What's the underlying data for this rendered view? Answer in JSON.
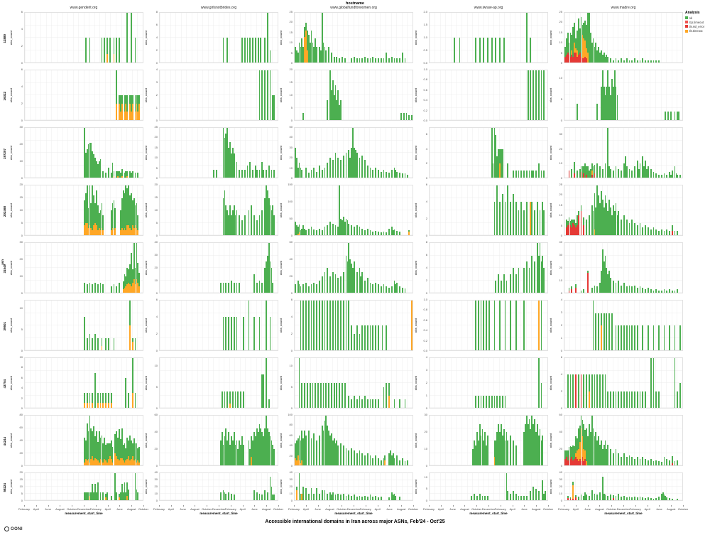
{
  "header": {
    "facet_title": "hostname",
    "columns": [
      "www.genderit.org",
      "www.girlsnotbrides.org",
      "www.globalfundforwomen.org",
      "www.iwraw-ap.org",
      "www.madre.org"
    ]
  },
  "left": {
    "facet_title": "asn",
    "rows": [
      "12880",
      "16322",
      "197207",
      "202468",
      "31549",
      "39501",
      "43754",
      "44244",
      "58224"
    ]
  },
  "legend": {
    "title": "Analysis",
    "items": [
      {
        "label": "ok",
        "color": "#4CAF50"
      },
      {
        "label": "tcp.timeout",
        "color": "#EF5350"
      },
      {
        "label": "tls.ssl_error",
        "color": "#E53935"
      },
      {
        "label": "tls.timeout",
        "color": "#FFA726"
      }
    ]
  },
  "axes": {
    "x_label": "measurement_start_time",
    "y_label": "obs_count",
    "x_ticks": [
      "February",
      "April",
      "June",
      "August",
      "October",
      "December",
      "February",
      "April",
      "June",
      "August",
      "October"
    ]
  },
  "footer": {
    "title": "Accessible international domains in Iran across major ASNs, Feb'24 - Oct'25",
    "logo_text": "OONI"
  },
  "chart_data": {
    "type": "bar",
    "stacked": true,
    "legend_position": "top-right",
    "grid": true,
    "facet": {
      "row_field": "asn",
      "col_field": "hostname"
    },
    "x_domain": [
      "2024-02",
      "2025-10"
    ],
    "weeks": 88,
    "x_tick_labels": [
      "February",
      "April",
      "June",
      "August",
      "October",
      "December",
      "February",
      "April",
      "June",
      "August",
      "October"
    ],
    "rows": [
      "12880",
      "16322",
      "197207",
      "202468",
      "31549",
      "39501",
      "43754",
      "44244",
      "58224"
    ],
    "cols": [
      "www.genderit.org",
      "www.girlsnotbrides.org",
      "www.globalfundforwomen.org",
      "www.iwraw-ap.org",
      "www.madre.org"
    ],
    "segments": [
      "ok",
      "tls.timeout",
      "tls.ssl_error"
    ],
    "segment_colors": {
      "ok": "#4CAF50",
      "tls.timeout": "#FFA726",
      "tls.ssl_error": "#E53935"
    },
    "bar_format": "weekIndex,ok[,timeout_orange[,error_red]] ; ...",
    "panels": [
      {
        "ymax": 6,
        "bars": "45,3;48,3;57,3;59,3;61,2,1;63,3;66,2,1;68,3;70,3;76,6;79,6;82,3"
      },
      {
        "ymax": 8,
        "bars": "47,4;50,4;61,4;63,4;65,4;67,4;69,4;71,4;73,4;75,4;78,4;80,8;82,2"
      },
      {
        "ymax": 25,
        "bars": "0,8;1,6;2,5;3,10;4,8;5,12;6,8;7,5,13;8,4,16;9,10,6;10,14;11,10;12,16;13,10;14,8;15,12;16,8;18,8;19,6;20,25;21,10;22,8;23,6;25,8;27,5;29,3;31,3;33,2;35,3;37,2;42,2;44,3;46,2;48,2;50,2;52,3;54,2;56,2;58,3;60,2;62,2;64,2;66,2;68,5;70,2;72,3;74,2;76,2;78,2;80,5;82,2"
      },
      {
        "ymax": 2,
        "bars": "18,1;22,1;34,1;37,1;40,1;43,1;46,1;49,1;52,1;55,1;72,2;75,1"
      },
      {
        "ymax": 25,
        "bars": "0,5,0,3;1,8,0,4;2,10,0,5;3,6,0,4;4,12,0,3;5,8,2,4;6,15,0,3;7,10,5,5;8,5,2,5;9,10,3,3;10,18,0,4;11,12,0,5;12,20,0,3;13,5,12,2;14,8,10,2;15,10,8,3;16,12,5,2;17,20,5;18,25;19,15;20,10;21,12;22,8;23,10;24,6;25,8;26,5;27,6;28,4;29,5;30,3;31,4;32,3;34,2;36,1;38,2;40,1;42,2;44,1;46,2;48,1;50,1;52,2;54,1;56,1;58,2;60,1;62,1;64,1;66,1;68,1;70,1"
      },
      {
        "ymax": 6,
        "bars": "68,4,2;70,1,2;71,2,1;72,1,2;74,2,1;75,1,2;76,2,1;78,1,2;79,2,1;80,1,2;82,2,1;83,1,2;84,2,1;85,1,2"
      },
      {
        "ymax": 4,
        "bars": "74,4;76,4;78,4;80,4;82,4;84,2;85,2"
      },
      {
        "ymax": 20,
        "bars": "6,3;24,8;26,20;27,12;28,16;29,10;30,14;31,8;32,12;33,6;34,8;79,3;81,3;83,3;85,2;87,2"
      },
      {
        "ymax": 1,
        "bars": "73,1;75,1;77,1;79,1;81,1;83,1;85,1"
      },
      {
        "ymax": 12,
        "bars": "9,4;24,4;27,8;28,12;29,8;30,6;31,8;32,12;33,8;34,6;35,10;36,8;37,12;38,8;39,6;75,2;77,2;79,2;82,2;84,2;85,2"
      },
      {
        "ymax": 30,
        "bars": "44,30;45,15;46,17;47,20;48,21;49,21;50,16;51,14;52,12;53,10;54,8;55,10;56,11;58,4;60,3;62,6;64,3;65,9;66,3,1;68,4;69,3,1;70,4;71,3;72,4,1;74,3;75,4;76,3,1;78,4;79,3;80,4;82,3;84,3"
      },
      {
        "ymax": 25,
        "bars": "40,4;42,4;47,25;48,20;49,22;50,25;51,15;52,18;53,12;54,15;55,12;57,8;59,4;61,4;63,4;65,6;67,8;69,4;71,6;72,4;74,4;76,8;77,4;79,4;81,6;83,4;85,4"
      },
      {
        "ymax": 50,
        "bars": "0,30;1,20;2,10;3,15;4,10;5,8;8,10;10,5;12,8;14,10;16,6;18,12;20,8;22,10;24,15;26,20;28,18;30,25;32,20;34,18;36,22;38,25;40,28;41,20;42,30;43,50;44,30;45,28;46,25;48,20;50,22;52,18;54,12;56,10;58,8;60,10;62,8;64,6;66,8;68,6;70,5;72,8;74,10;75,8;76,6;78,5;80,4;82,4;84,3"
      },
      {
        "ymax": 7,
        "bars": "46,7;47,2;48,7;49,6;50,3;51,4;52,2,2;53,4;54,4;58,2;62,1;64,1;66,1;68,1;70,1;72,1;74,1;76,1;77,1;79,1;81,2;83,1;85,1"
      },
      {
        "ymax": 35,
        "bars": "3,0,0,5;5,6;7,8,0,3;9,5;11,6;12,4,0,4;13,8;14,5,0,3;15,10;16,6,0,2;17,8;18,5;19,6;20,5,3,2;21,8;22,6,0,3;24,10;26,8;28,6;30,10;32,35;33,8;34,6;36,5;38,8;40,6;42,5;44,10;45,15;46,8;48,6;50,5;52,8;54,12;55,6;56,10;58,15;59,8;60,12;61,6;62,8;64,6;66,4;68,3;70,2;72,2;74,3;76,2;78,4;79,2;80,5;82,8;83,3;84,2;86,2"
      },
      {
        "ymax": 20,
        "bars": "44,10,4;45,12,5;46,15,5;47,8,3;48,16,4;49,10,3;50,18,2;51,12,4;52,8,5;53,14,4;54,10,2;55,6,3;56,8,2;57,10,3;58,6,2;64,8,2;65,10,3;66,12,2;67,8,3;71,8,2;72,12,3;73,16,2;74,14,3;75,18,2;76,15,4;77,16,4;78,13,3;79,15,2;80,10,4;81,12,3;82,8,4;83,10,3;84,6,2"
      },
      {
        "ymax": 20,
        "bars": "47,15;48,18;49,12;50,10;51,8;52,12;53,8;54,10;55,12;56,8;57,10;59,8;61,6;63,8;66,10;68,12;70,8;72,6;74,8;76,10;78,15;79,20;80,18;81,15;82,12;83,10;84,12;85,8"
      },
      {
        "ymax": 150,
        "bars": "0,40;1,30;2,20,5;3,25,8;4,15;5,20;6,30;7,20;8,15;10,20;12,25;14,18;16,15;18,20;20,15;22,25;24,30;26,40;28,35;30,30;32,25;33,150;34,50;35,45;36,55;37,40;38,50;39,45;40,35;42,30;44,25;46,30;48,25;50,20;52,15;54,20;56,15;58,10;60,12;62,10;64,8;66,10;68,8;70,20;72,25;73,15;74,18;76,12;78,10;85,5,10"
      },
      {
        "ymax": 6,
        "bars": "48,4;50,6;52,4;54,5;56,4;58,6;60,4;62,5;64,4;66,3;68,4;70,3;72,4;75,0,4;76,4;78,3;80,4;82,3;84,4;85,3"
      },
      {
        "ymax": 25,
        "bars": "1,4,0,4;2,2,0,5;3,3,0,6;4,2,0,5;5,4,0,4;6,2,0,6;7,3,0,5;8,2,0,4;9,5,0,5;10,2,0,10;12,3,0,12;14,4,0,5;16,8;18,10;20,15;21,12;22,18,3;23,14;24,25;25,20;26,16;27,22;28,18;29,14;30,20;31,16;32,12;33,18;34,14;35,10;36,15;37,12;38,16;39,10;40,12;42,8;44,10;46,8;48,6;50,8;52,6;54,5;56,6;58,4;60,5;62,4;64,3;66,4;68,3;70,2;72,3;74,2;76,3;78,2;80,3,0,2;82,2;84,2"
      },
      {
        "ymax": 30,
        "bars": "44,6;46,5;48,6;50,5;52,6;54,5;56,6;58,5;64,4;66,5;68,4;70,6;73,5,2;74,8,3;75,6,4;76,10,5;77,8,6;78,12,5;79,20,4;80,8,6;81,22,8;82,10,5;83,22,8;84,12,6;85,8,4"
      },
      {
        "ymax": 40,
        "bars": "45,8;47,8;49,8;51,8;53,10;55,8;57,8;59,8;70,15;72,8;74,10;76,8;78,20;79,25;80,30;81,40;82,25;83,20;84,8"
      },
      {
        "ymax": 60,
        "bars": "0,10;2,15;3,10;4,8;6,10;8,12;10,8;12,10;14,12;16,10;18,15;20,20;22,25;24,30;26,20;28,25;30,22;32,18;34,20;36,25;38,45;39,38;40,60;41,40;42,35;43,30;44,38;46,25;48,30;49,20;50,25;52,15;54,18;56,12;58,10;60,12;62,10;64,8;66,10;68,8;70,6;72,8;74,15;75,10;76,12;78,8;80,6;82,5"
      },
      {
        "ymax": 8,
        "bars": "49,2;51,3;53,2;55,3;57,2;60,3;62,4;64,3;66,4;70,4;72,5;74,4;76,6;78,5;80,8;81,6;82,8;83,5;84,6;85,4"
      },
      {
        "ymax": 40,
        "bars": "3,2,0,2;5,2,0,3;8,3,0,4;12,2;14,3;17,2,0,16;20,4;22,6;24,5;26,8;27,18;28,35;29,25;30,30;31,20;32,15;33,18;34,12;36,10;38,8;40,10;42,6;44,8;46,5;48,6;50,5;52,6;54,4;56,5;58,4;60,3;62,4;64,3;66,2;68,3;70,2;72,2;74,3;76,2;78,3;80,2;82,2;84,3"
      },
      {
        "ymax": 12,
        "bars": "44,8;46,3;48,4;50,3;52,4;54,3;57,2,1;60,3;62,3;66,3;78,6,6;80,1,2;82,3"
      },
      {
        "ymax": 6,
        "bars": "47,4;49,4;51,4;53,4;55,4;57,4;62,4;66,6;70,4;74,4;79,6;82,4"
      },
      {
        "ymax": 6,
        "bars": "4,6;6,6;8,6;10,6;12,6;14,6;16,6;18,6;20,6;22,6;24,6;26,6;28,6;30,6;32,6;34,6;36,6;38,6;40,6;42,3;44,2;46,3;48,2;50,3;52,3;54,3;56,3;58,3;60,3;62,3;65,3;68,3;87,0,6"
      },
      {
        "ymax": 1,
        "bars": "34,1;36,1;38,1;40,1;42,1;44,1;48,1;52,1;56,1;60,1;64,1;70,1;81,0,1;83,1"
      },
      {
        "ymax": 4,
        "bars": "21,4;23,3;25,3;27,1,2;29,3;31,3;33,3;35,3;38,2;40,2;42,2;44,2;46,2;48,2;50,2;52,2;54,2;58,2;62,2;66,2;70,2;74,2;78,2;82,2;86,2"
      },
      {
        "ymax": 10,
        "bars": "44,2,1;46,2,1;48,2,1;50,2,1;52,7;54,2,1;56,2,1;58,2,1;60,2,1;62,2,1;64,2,1;75,6;77,3;80,7,3;82,3"
      },
      {
        "ymax": 12,
        "bars": "46,4;48,4;50,4;52,3,1;54,4;56,4;58,4;60,4;62,4;76,8;77,8;79,12;81,2"
      },
      {
        "ymax": 12,
        "bars": "3,12;5,6;7,6;9,6;11,6;13,6;15,6;17,6;19,6;21,6;23,6;25,6;27,6;29,6;31,6;33,6;35,6;37,6;40,3;42,2;44,3;46,2;48,3;50,2;52,3;54,2;56,2;58,2;60,2;62,2;66,5;68,6;70,3,3;74,2;78,2;82,2"
      },
      {
        "ymax": 4,
        "bars": "34,1;36,1;38,1;40,1;42,1;44,1;46,1;48,1;50,1;52,1;54,1;56,1;81,4;83,2"
      },
      {
        "ymax": 6,
        "bars": "2,4;4,4;6,4;8,0,0,4;10,4;12,0,0,4;14,4;16,4;18,2,2;20,4;22,4;24,4;26,4;28,4;30,4;32,2;34,2;36,2;38,2;40,2;42,2;44,2;46,2;48,2;50,2;52,2;54,2;56,2;58,2;60,2;64,6;66,6;68,2;70,2;82,6;84,2;86,3"
      },
      {
        "ymax": 80,
        "bars": "44,40,5;45,30,10;46,60,8;47,45,10;48,75,5;49,50,10;50,40,15;51,55,8;52,35,12;53,45,10;54,30,8;55,50,5;56,35,10;57,40,8;58,30,5;59,35,10;60,25,8;61,30,5;62,25,10;63,20,15;64,30,10;65,25,5;67,30,20;68,40,15;69,35,10;70,50,8;71,30,12;72,48,12;73,25,8;74,30,5;75,20,8;76,35,10;77,25,15;78,40,8;79,30,10;80,20,15;81,35,8;82,25,10;83,30,5;84,20,8;85,25,5"
      },
      {
        "ymax": 60,
        "bars": "45,30;46,40;47,25;48,35;49,45;50,30;51,40;52,25;53,35;54,30;55,40;56,25;57,30;58,20;59,30;60,25;61,35;62,25;66,30;67,20;68,25,10;69,30;70,40;71,35;72,45;73,40;74,50;75,45;76,40;77,35;78,45;79,60;80,45;81,40;82,35;83,30;84,25;85,20"
      },
      {
        "ymax": 100,
        "bars": "0,30,15;1,40,10;2,35,20;3,50,10;4,45,5;5,60,10;6,55;7,70;8,60;10,70;12,55;14,65;16,50;18,60;20,80;21,70;22,90;23,100;24,80;25,70;26,60;27,65;28,50;29,55;30,45;31,50;32,40;34,45;36,40;38,35;40,30;42,35;44,30;46,25;48,30;50,25;52,20;54,25;56,20;58,15;60,20;62,15;64,10;66,15;67,10,10;70,25;71,30;72,20;73,25;74,15;76,20;78,10;80,15;82,8;84,10"
      },
      {
        "ymax": 30,
        "bars": "32,10;33,15;34,12;35,20;36,15;37,25;38,18;39,22;40,15;41,20;42,12;43,18;48,10,5;49,15;50,20;51,25;52,20;53,25;54,18;55,22;56,15;57,20;58,15;60,18;62,15;64,12;70,20;71,25;72,30;73,25;74,28;75,22;76,30;77,25;78,28;79,20;80,25;81,18;82,22;83,15;84,18"
      },
      {
        "ymax": 60,
        "bars": "0,10,0,8;1,8,0,10;2,12,0,6;3,10,0,12;4,15,0,8;5,12,0,10;6,18,0,6;7,15,0,8;8,20,5,10;9,15,10,8;10,25,15,5;11,20,20,8;12,15,40,5;13,20,25,10;14,30,15,5;15,25,10,8;16,40,5;17,35;18,50;19,40;20,60;21,45;22,35;23,40;24,30;25,35;26,25;27,30;28,20;29,25;30,30;31,20;32,25;34,20;36,15;38,20;40,15;42,10;44,15;46,10;48,12;50,10;52,8;54,10;56,8;58,10;60,8;62,6;64,8;66,5;68,6;70,5;72,4;74,10;76,8;78,6;80,8,0,3;82,5;84,6"
      },
      {
        "ymax": 20,
        "bars": "44,6;45,6;46,6;47,6;48,3,3;49,6;50,12;51,6;52,12;53,6;54,13;56,6;58,6;60,3,2;61,6;64,3;67,20;68,6;70,3,2;71,6;72,12;73,6;74,13;75,6;76,10,3;77,8;82,20;83,8;84,6"
      },
      {
        "ymax": 40,
        "bars": "45,12;47,15;48,12;49,10;51,12;53,10;55,8;70,15;72,12;74,10;76,8;78,15;80,12;82,35;83,20;84,8;85,8"
      },
      {
        "ymax": 40,
        "bars": "1,5,15;3,40;4,10;5,0,10;6,20;8,18;10,10;12,18;14,10;16,18;18,10;20,15;22,15;24,10;26,12;27,8;28,12;30,8;32,10;34,8;36,10;38,6;40,8;42,6;44,8;46,5;48,6;50,5;52,6;54,5;56,8;58,5;60,6;62,4;64,5;70,4;72,12;73,8;74,10;75,6;78,5"
      },
      {
        "ymax": 12,
        "bars": "31,2;33,3;35,2;37,3;39,2;41,2;43,2;57,12;58,4;60,3;62,4;64,3;66,2;68,2;70,2;72,2;75,4;77,6;79,5;81,4;84,9;85,3;86,4"
      },
      {
        "ymax": 40,
        "bars": "2,3,0,3;4,2,0,2;6,5,20,2;8,3,0,4;10,5;12,8;14,6;15,12;16,8;18,6;20,15;22,10;24,8;26,12;28,35;29,10;30,8;32,6;34,8;36,4,0,3;38,6;40,10;42,5;44,6;46,4;48,5;50,4;52,5;54,4;56,5;58,4;60,3;62,4;64,3;66,2;68,3;70,5;72,10;73,12;74,8;75,6;76,4;78,3;80,2;84,2"
      }
    ]
  }
}
